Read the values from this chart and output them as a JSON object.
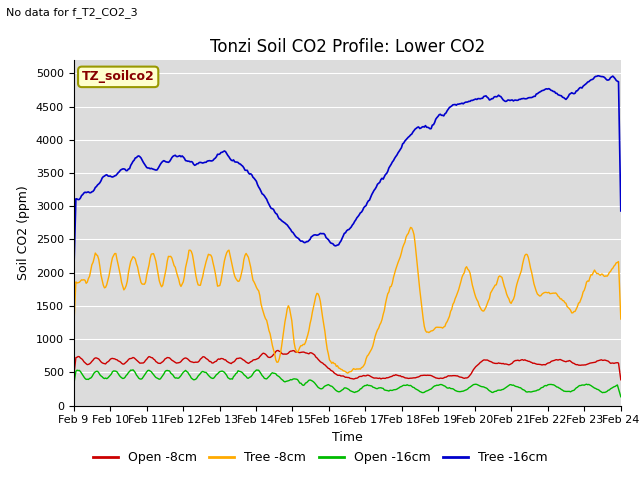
{
  "title": "Tonzi Soil CO2 Profile: Lower CO2",
  "subtitle": "No data for f_T2_CO2_3",
  "ylabel": "Soil CO2 (ppm)",
  "xlabel": "Time",
  "box_label": "TZ_soilco2",
  "ylim": [
    0,
    5200
  ],
  "yticks": [
    0,
    500,
    1000,
    1500,
    2000,
    2500,
    3000,
    3500,
    4000,
    4500,
    5000
  ],
  "xtick_labels": [
    "Feb 9",
    "Feb 10",
    "Feb 11",
    "Feb 12",
    "Feb 13",
    "Feb 14",
    "Feb 15",
    "Feb 16",
    "Feb 17",
    "Feb 18",
    "Feb 19",
    "Feb 20",
    "Feb 21",
    "Feb 22",
    "Feb 23",
    "Feb 24"
  ],
  "legend": [
    {
      "label": "Open -8cm",
      "color": "#cc0000"
    },
    {
      "label": "Tree -8cm",
      "color": "#ffaa00"
    },
    {
      "label": "Open -16cm",
      "color": "#00bb00"
    },
    {
      "label": "Tree -16cm",
      "color": "#0000cc"
    }
  ],
  "bg_color": "#dcdcdc",
  "fig_bg": "#ffffff",
  "title_fontsize": 12,
  "axis_fontsize": 9,
  "tick_fontsize": 8,
  "legend_fontsize": 9
}
